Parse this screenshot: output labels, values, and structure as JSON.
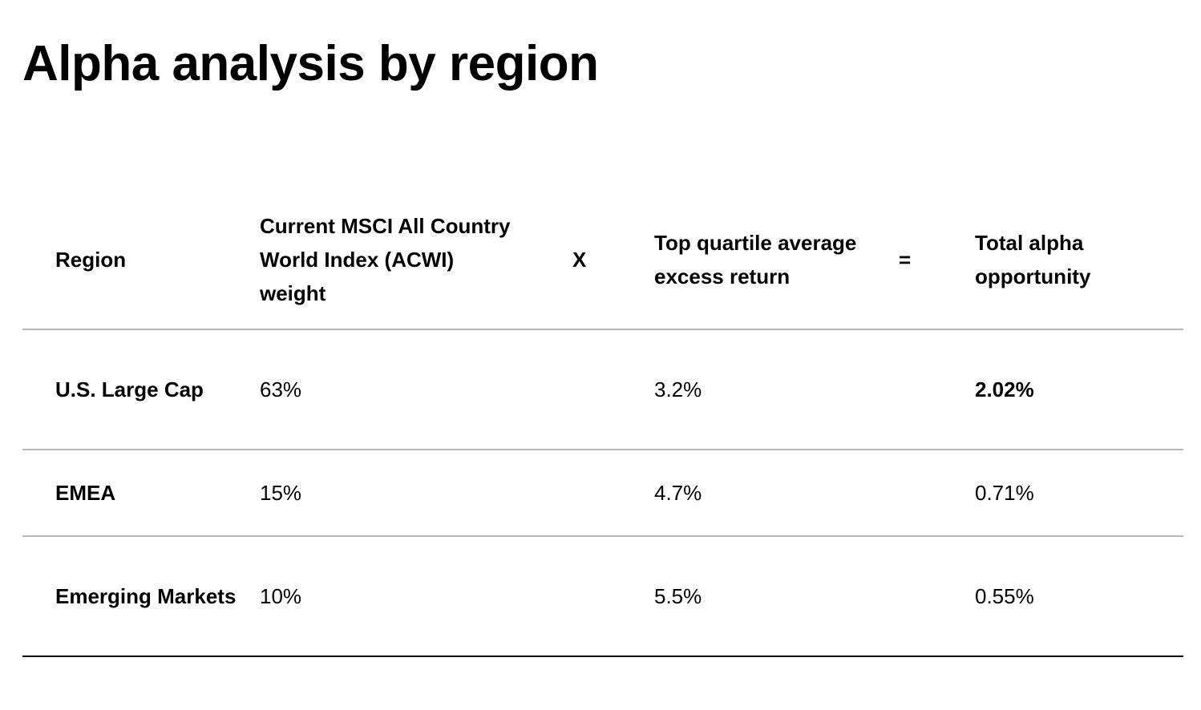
{
  "page": {
    "title": "Alpha analysis by region"
  },
  "table": {
    "headers": {
      "region": "Region",
      "weight": "Current MSCI All Country World Index (ACWI) weight",
      "times": "X",
      "excess": "Top quartile average excess return",
      "equals": "=",
      "alpha": "Total alpha opportunity"
    },
    "rows": [
      {
        "region": "U.S. Large Cap",
        "weight": "63%",
        "excess": "3.2%",
        "alpha": "2.02%",
        "alpha_emphasis": true
      },
      {
        "region": "EMEA",
        "weight": "15%",
        "excess": "4.7%",
        "alpha": "0.71%",
        "alpha_emphasis": false
      },
      {
        "region": "Emerging Markets",
        "weight": "10%",
        "excess": "5.5%",
        "alpha": "0.55%",
        "alpha_emphasis": false
      }
    ]
  },
  "colors": {
    "text": "#000000",
    "divider": "#b8b8b8",
    "bottom_rule": "#000000",
    "background": "#ffffff"
  }
}
